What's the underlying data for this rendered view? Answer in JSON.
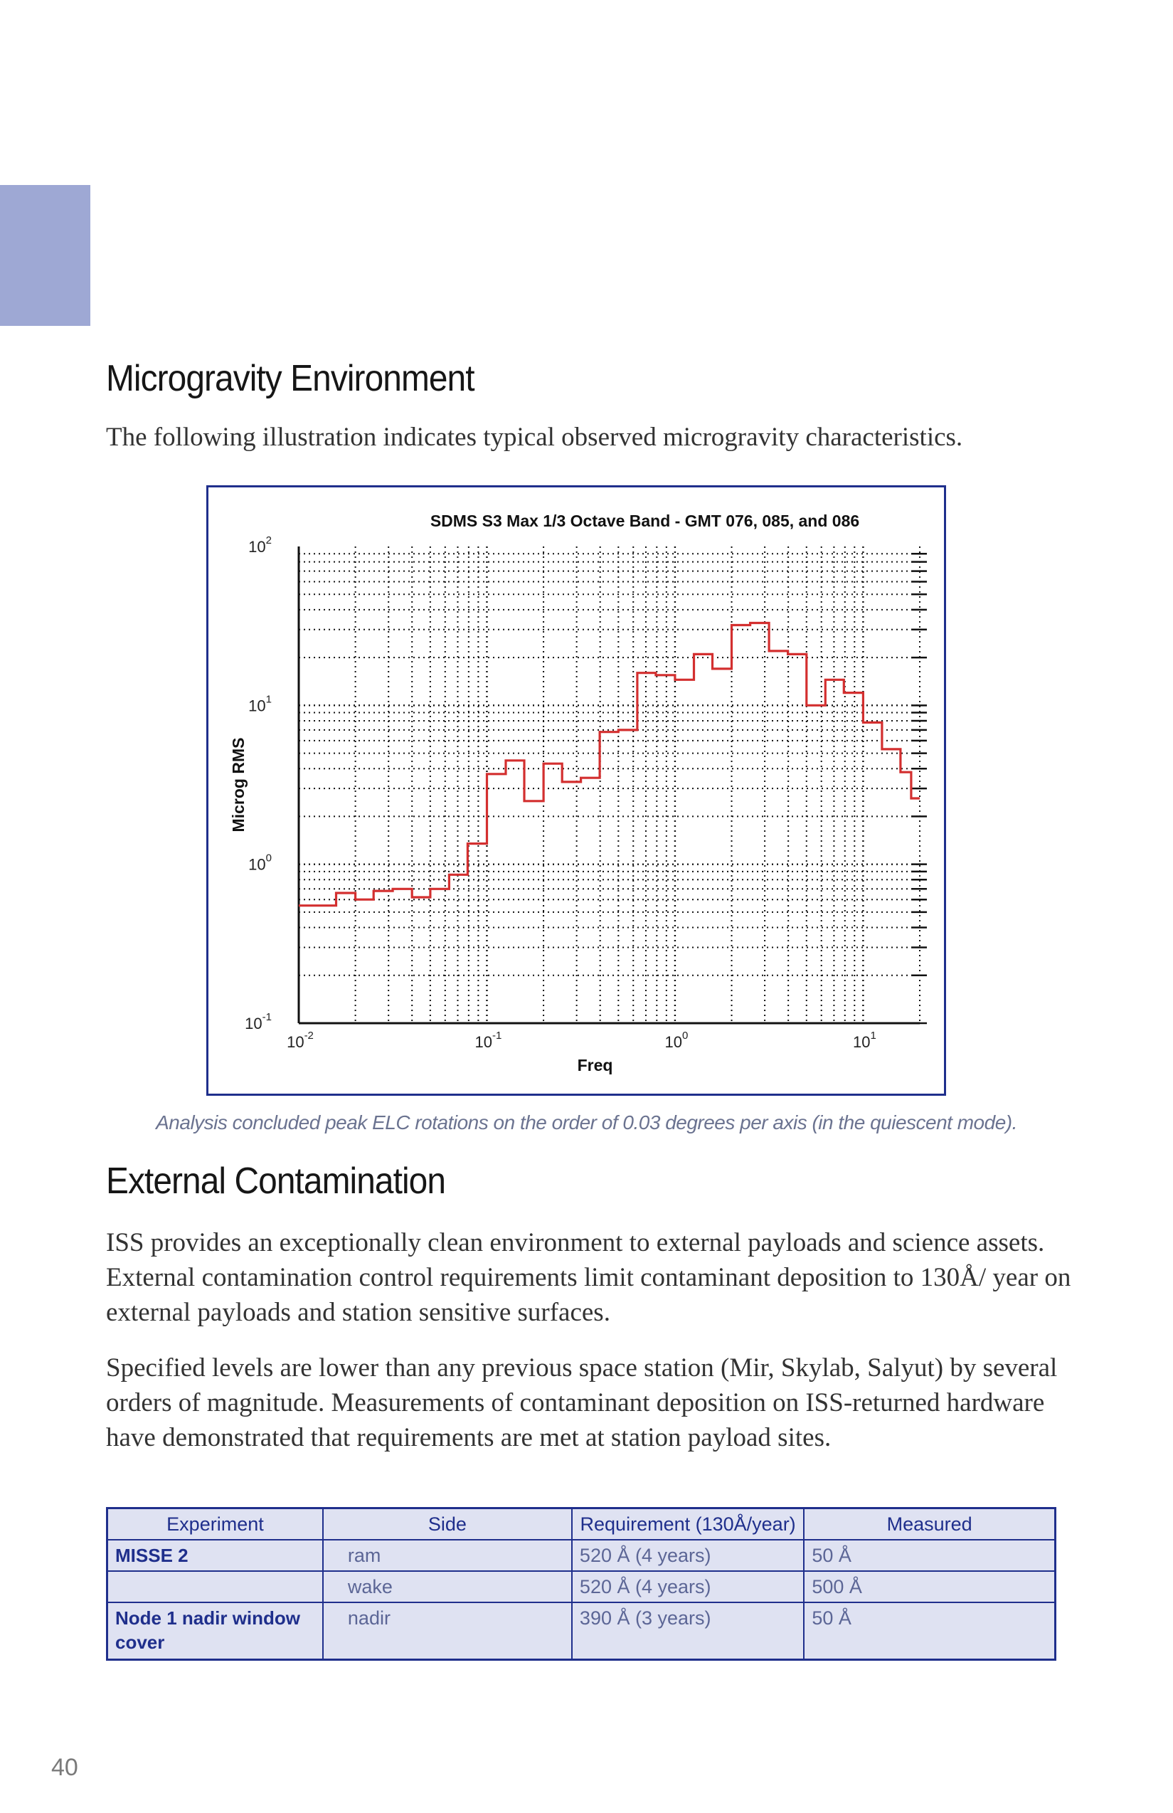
{
  "section1": {
    "heading": "Microgravity Environment",
    "intro": "The following illustration indicates typical observed microgravity characteristics."
  },
  "chart_data": {
    "type": "line",
    "title": "SDMS S3 Max 1/3 Octave Band - GMT 076, 085, and 086",
    "xlabel": "Freq",
    "ylabel": "Microg RMS",
    "xscale": "log",
    "yscale": "log",
    "xlim": [
      0.01,
      20
    ],
    "ylim": [
      0.1,
      100
    ],
    "grid": true,
    "legend": "none",
    "line_color": "#d32f2f",
    "x_ticks": [
      {
        "base": "10",
        "exp": "-2"
      },
      {
        "base": "10",
        "exp": "-1"
      },
      {
        "base": "10",
        "exp": "0"
      },
      {
        "base": "10",
        "exp": "1"
      }
    ],
    "y_ticks": [
      {
        "base": "10",
        "exp": "2"
      },
      {
        "base": "10",
        "exp": "1"
      },
      {
        "base": "10",
        "exp": "0"
      },
      {
        "base": "10",
        "exp": "-1"
      }
    ],
    "series": [
      {
        "step": "band",
        "bands": [
          {
            "x_low": 0.01,
            "x_high": 0.0158,
            "y": 0.55
          },
          {
            "x_low": 0.0158,
            "x_high": 0.02,
            "y": 0.66
          },
          {
            "x_low": 0.02,
            "x_high": 0.025,
            "y": 0.6
          },
          {
            "x_low": 0.025,
            "x_high": 0.0316,
            "y": 0.68
          },
          {
            "x_low": 0.0316,
            "x_high": 0.04,
            "y": 0.7
          },
          {
            "x_low": 0.04,
            "x_high": 0.05,
            "y": 0.62
          },
          {
            "x_low": 0.05,
            "x_high": 0.063,
            "y": 0.7
          },
          {
            "x_low": 0.063,
            "x_high": 0.079,
            "y": 0.86
          },
          {
            "x_low": 0.079,
            "x_high": 0.1,
            "y": 1.35
          },
          {
            "x_low": 0.1,
            "x_high": 0.126,
            "y": 3.7
          },
          {
            "x_low": 0.126,
            "x_high": 0.158,
            "y": 4.5
          },
          {
            "x_low": 0.158,
            "x_high": 0.2,
            "y": 2.5
          },
          {
            "x_low": 0.2,
            "x_high": 0.251,
            "y": 4.3
          },
          {
            "x_low": 0.251,
            "x_high": 0.316,
            "y": 3.3
          },
          {
            "x_low": 0.316,
            "x_high": 0.398,
            "y": 3.5
          },
          {
            "x_low": 0.398,
            "x_high": 0.5,
            "y": 6.8
          },
          {
            "x_low": 0.5,
            "x_high": 0.63,
            "y": 7.0
          },
          {
            "x_low": 0.63,
            "x_high": 0.79,
            "y": 16.0
          },
          {
            "x_low": 0.79,
            "x_high": 1.0,
            "y": 15.5
          },
          {
            "x_low": 1.0,
            "x_high": 1.26,
            "y": 14.5
          },
          {
            "x_low": 1.26,
            "x_high": 1.58,
            "y": 21.0
          },
          {
            "x_low": 1.58,
            "x_high": 2.0,
            "y": 17.0
          },
          {
            "x_low": 2.0,
            "x_high": 2.51,
            "y": 32.0
          },
          {
            "x_low": 2.51,
            "x_high": 3.16,
            "y": 33.0
          },
          {
            "x_low": 3.16,
            "x_high": 3.98,
            "y": 22.0
          },
          {
            "x_low": 3.98,
            "x_high": 5.0,
            "y": 21.0
          },
          {
            "x_low": 5.0,
            "x_high": 6.3,
            "y": 10.0
          },
          {
            "x_low": 6.3,
            "x_high": 7.9,
            "y": 14.5
          },
          {
            "x_low": 7.9,
            "x_high": 10.0,
            "y": 12.0
          },
          {
            "x_low": 10.0,
            "x_high": 12.6,
            "y": 7.8
          },
          {
            "x_low": 12.6,
            "x_high": 15.8,
            "y": 5.3
          },
          {
            "x_low": 15.8,
            "x_high": 18.0,
            "y": 3.8
          },
          {
            "x_low": 18.0,
            "x_high": 20.0,
            "y": 2.6
          }
        ]
      }
    ]
  },
  "chart_caption": "Analysis concluded peak ELC rotations on the order of 0.03 degrees per axis (in the quiescent mode).",
  "section2": {
    "heading": "External Contamination",
    "paragraphs": [
      "ISS provides an exceptionally clean environment to external payloads and science assets. External contamination control requirements limit contaminant deposition to 130Å/ year on external payloads and station sensitive surfaces.",
      "Specified levels are lower than any previous space station (Mir, Skylab, Salyut) by several orders of magnitude. Measurements of contaminant deposition on ISS-returned hardware have demonstrated that requirements are met at station payload sites."
    ]
  },
  "table": {
    "headers": [
      "Experiment",
      "Side",
      "Requirement (130Å/year)",
      "Measured"
    ],
    "rows": [
      {
        "experiment": "MISSE 2",
        "side": "ram",
        "requirement": "520 Å  (4 years)",
        "measured": "50 Å"
      },
      {
        "experiment": "",
        "side": "wake",
        "requirement": "520 Å  (4 years)",
        "measured": "500 Å"
      },
      {
        "experiment": "Node 1 nadir window cover",
        "side": "nadir",
        "requirement": "390 Å  (3 years)",
        "measured": "50 Å"
      }
    ]
  },
  "page_number": "40",
  "colors": {
    "tab": "#9ea8d4",
    "frame": "#1f2f8c",
    "table_fill": "#dfe2f2"
  }
}
